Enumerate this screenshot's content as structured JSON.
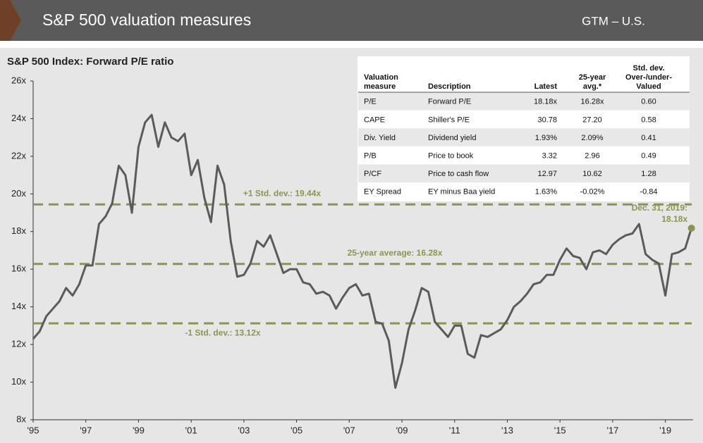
{
  "header": {
    "title": "S&P 500 valuation measures",
    "tag": "GTM – U.S."
  },
  "chart_data": {
    "type": "line",
    "title": "S&P 500 Index: Forward P/E ratio",
    "color": "#5b5b5b",
    "x": [
      1995,
      1995.25,
      1995.5,
      1995.75,
      1996,
      1996.25,
      1996.5,
      1996.75,
      1997,
      1997.25,
      1997.5,
      1997.75,
      1998,
      1998.25,
      1998.5,
      1998.75,
      1999,
      1999.25,
      1999.5,
      1999.75,
      2000,
      2000.25,
      2000.5,
      2000.75,
      2001,
      2001.25,
      2001.5,
      2001.75,
      2002,
      2002.25,
      2002.5,
      2002.75,
      2003,
      2003.25,
      2003.5,
      2003.75,
      2004,
      2004.25,
      2004.5,
      2004.75,
      2005,
      2005.25,
      2005.5,
      2005.75,
      2006,
      2006.25,
      2006.5,
      2006.75,
      2007,
      2007.25,
      2007.5,
      2007.75,
      2008,
      2008.25,
      2008.5,
      2008.75,
      2009,
      2009.25,
      2009.5,
      2009.75,
      2010,
      2010.25,
      2010.5,
      2010.75,
      2011,
      2011.25,
      2011.5,
      2011.75,
      2012,
      2012.25,
      2012.5,
      2012.75,
      2013,
      2013.25,
      2013.5,
      2013.75,
      2014,
      2014.25,
      2014.5,
      2014.75,
      2015,
      2015.25,
      2015.5,
      2015.75,
      2016,
      2016.25,
      2016.5,
      2016.75,
      2017,
      2017.25,
      2017.5,
      2017.75,
      2018,
      2018.25,
      2018.5,
      2018.75,
      2019,
      2019.25,
      2019.5,
      2019.75,
      2019.99
    ],
    "values": [
      12.3,
      12.7,
      13.5,
      13.9,
      14.3,
      15.0,
      14.6,
      15.2,
      16.2,
      16.2,
      18.4,
      18.8,
      19.5,
      21.5,
      21.0,
      19.0,
      22.5,
      23.8,
      24.2,
      22.5,
      23.8,
      23.0,
      22.8,
      23.2,
      21.0,
      21.8,
      19.8,
      18.5,
      21.5,
      20.5,
      17.5,
      15.6,
      15.7,
      16.3,
      17.5,
      17.2,
      17.8,
      16.8,
      15.8,
      16.0,
      16.0,
      15.3,
      15.2,
      14.7,
      14.8,
      14.6,
      13.9,
      14.5,
      15.0,
      15.2,
      14.6,
      14.7,
      13.2,
      13.1,
      12.2,
      9.7,
      11.0,
      12.8,
      13.8,
      15.0,
      14.8,
      13.2,
      12.8,
      12.4,
      13.0,
      13.0,
      11.5,
      11.3,
      12.5,
      12.4,
      12.6,
      12.8,
      13.3,
      14.0,
      14.3,
      14.7,
      15.2,
      15.3,
      15.7,
      15.7,
      16.5,
      17.1,
      16.7,
      16.6,
      16.0,
      16.9,
      17.0,
      16.8,
      17.3,
      17.6,
      17.8,
      17.9,
      18.4,
      16.8,
      16.5,
      16.3,
      14.6,
      16.8,
      16.9,
      17.1,
      18.18
    ],
    "xlim": [
      1995,
      2020
    ],
    "xticks": [
      {
        "value": 1995,
        "label": "'95"
      },
      {
        "value": 1997,
        "label": "'97"
      },
      {
        "value": 1999,
        "label": "'99"
      },
      {
        "value": 2001,
        "label": "'01"
      },
      {
        "value": 2003,
        "label": "'03"
      },
      {
        "value": 2005,
        "label": "'05"
      },
      {
        "value": 2007,
        "label": "'07"
      },
      {
        "value": 2009,
        "label": "'09"
      },
      {
        "value": 2011,
        "label": "'11"
      },
      {
        "value": 2013,
        "label": "'13"
      },
      {
        "value": 2015,
        "label": "'15"
      },
      {
        "value": 2017,
        "label": "'17"
      },
      {
        "value": 2019,
        "label": "'19"
      }
    ],
    "ylim": [
      8,
      26
    ],
    "yticks": [
      {
        "value": 8,
        "label": "8x"
      },
      {
        "value": 10,
        "label": "10x"
      },
      {
        "value": 12,
        "label": "12x"
      },
      {
        "value": 14,
        "label": "14x"
      },
      {
        "value": 16,
        "label": "16x"
      },
      {
        "value": 18,
        "label": "18x"
      },
      {
        "value": 20,
        "label": "20x"
      },
      {
        "value": 22,
        "label": "22x"
      },
      {
        "value": 24,
        "label": "24x"
      },
      {
        "value": 26,
        "label": "26x"
      }
    ],
    "reference_lines": [
      {
        "value": 19.44,
        "label": "+1 Std. dev.: 19.44x"
      },
      {
        "value": 16.28,
        "label": "25-year average: 16.28x"
      },
      {
        "value": 13.12,
        "label": "-1 Std. dev.: 13.12x"
      }
    ],
    "reference_color": "#8a9650",
    "end_label": {
      "text": "Dec. 31, 2019:",
      "value_label": "18.18x"
    }
  },
  "table": {
    "columns": [
      [
        "Valuation",
        "measure"
      ],
      [
        "Description"
      ],
      [
        "Latest"
      ],
      [
        "25-year",
        "avg.*"
      ],
      [
        "Std. dev.",
        "Over-/under-",
        "Valued"
      ]
    ],
    "rows": [
      [
        "P/E",
        "Forward P/E",
        "18.18x",
        "16.28x",
        "0.60"
      ],
      [
        "CAPE",
        "Shiller's P/E",
        "30.78",
        "27.20",
        "0.58"
      ],
      [
        "Div. Yield",
        "Dividend yield",
        "1.93%",
        "2.09%",
        "0.41"
      ],
      [
        "P/B",
        "Price to book",
        "3.32",
        "2.96",
        "0.49"
      ],
      [
        "P/CF",
        "Price to cash flow",
        "12.97",
        "10.62",
        "1.28"
      ],
      [
        "EY Spread",
        "EY minus Baa yield",
        "1.63%",
        "-0.02%",
        "-0.84"
      ]
    ]
  }
}
